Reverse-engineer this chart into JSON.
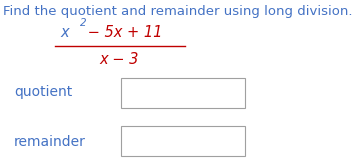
{
  "title": "Find the quotient and remainder using long division.",
  "title_color": "#4472C4",
  "title_fontsize": 9.5,
  "numerator_parts": [
    {
      "text": "x",
      "color": "#4472C4",
      "style": "italic"
    },
    {
      "text": "2",
      "color": "#4472C4",
      "style": "italic",
      "superscript": true
    },
    {
      "text": " − 5x + 11",
      "color": "#C00000",
      "style": "italic"
    }
  ],
  "denominator": "x − 3",
  "denominator_color": "#C00000",
  "fraction_line_color": "#C00000",
  "label_quotient": "quotient",
  "label_remainder": "remainder",
  "label_color": "#4472C4",
  "label_fontsize": 10,
  "box_edge_color": "#a0a0a0",
  "background_color": "#ffffff",
  "fig_width": 3.55,
  "fig_height": 1.65,
  "dpi": 100
}
